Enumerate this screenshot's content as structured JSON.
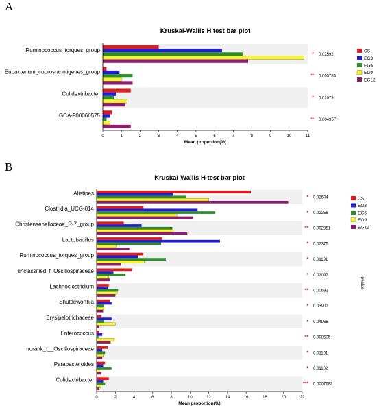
{
  "panels": {
    "a_label": "A",
    "b_label": "B"
  },
  "chart_data": [
    {
      "type": "bar",
      "orientation": "horizontal",
      "title": "Kruskal-Wallis H test bar plot",
      "xlabel": "Mean proportion(%)",
      "ylabel": "",
      "xlim": [
        0,
        11
      ],
      "xticks": [
        0,
        1,
        2,
        3,
        4,
        5,
        6,
        7,
        8,
        9,
        10,
        11
      ],
      "legend_position": "right",
      "categories": [
        "Ruminococcus_torques_group",
        "Eubacterium_coprostanoligenes_group",
        "Colidextribacter",
        "GCA-900066575"
      ],
      "pvalues": [
        "0.02592",
        "0.005785",
        "0.02079",
        "0.004957"
      ],
      "significance": [
        "*",
        "**",
        "*",
        "**"
      ],
      "series": [
        {
          "name": "CS",
          "color": "#e31a1c",
          "values": [
            3.0,
            0.2,
            1.5,
            0.5
          ]
        },
        {
          "name": "EG3",
          "color": "#1f1fd1",
          "values": [
            6.4,
            0.9,
            0.7,
            0.4
          ]
        },
        {
          "name": "EG6",
          "color": "#2e8b2e",
          "values": [
            7.5,
            1.6,
            0.6,
            0.2
          ]
        },
        {
          "name": "EG9",
          "color": "#f5f531",
          "values": [
            10.8,
            1.0,
            1.3,
            0.4
          ]
        },
        {
          "name": "EG12",
          "color": "#8b1f6b",
          "values": [
            7.8,
            1.6,
            1.2,
            1.5
          ]
        }
      ]
    },
    {
      "type": "bar",
      "orientation": "horizontal",
      "title": "Kruskal-Wallis H test bar plot",
      "xlabel": "Mean proportion(%)",
      "ylabel": "pvalue",
      "xlim": [
        0,
        22
      ],
      "xticks": [
        0,
        2,
        4,
        6,
        8,
        10,
        12,
        14,
        16,
        18,
        20,
        22
      ],
      "legend_position": "right",
      "categories": [
        "Alistipes",
        "Clostridia_UCG-014",
        "Christensenellaceae_R-7_group",
        "Lactobacillus",
        "Ruminococcus_torques_group",
        "unclassified_f_Oscillospiraceae",
        "Lachnoclostridium",
        "Shuttleworthia",
        "Erysipelotrichaceae",
        "Enterococcus",
        "norank_f__Oscillospiraceae",
        "Parabacteroides",
        "Colidextribacter"
      ],
      "pvalues": [
        "0.03604",
        "0.02256",
        "0.002851",
        "0.02375",
        "0.01191",
        "0.02097",
        "0.00692",
        "0.03902",
        "0.04968",
        "0.008505",
        "0.01101",
        "0.01102",
        "0.0007682"
      ],
      "significance": [
        "*",
        "*",
        "**",
        "*",
        "*",
        "*",
        "**",
        "*",
        "*",
        "**",
        "*",
        "*",
        "***"
      ],
      "series": [
        {
          "name": "CS",
          "color": "#e31a1c",
          "values": [
            16.5,
            5.0,
            2.9,
            7.0,
            5.0,
            3.8,
            1.3,
            1.4,
            0.5,
            0.3,
            1.2,
            0.9,
            1.3
          ]
        },
        {
          "name": "EG3",
          "color": "#1f1fd1",
          "values": [
            8.2,
            10.8,
            4.8,
            13.2,
            4.4,
            1.8,
            1.2,
            1.6,
            1.6,
            0.6,
            0.6,
            0.7,
            0.7
          ]
        },
        {
          "name": "EG6",
          "color": "#2e8b2e",
          "values": [
            9.6,
            12.7,
            8.1,
            6.9,
            7.4,
            3.1,
            2.3,
            0.8,
            0.8,
            0.2,
            0.9,
            1.6,
            0.9
          ]
        },
        {
          "name": "EG9",
          "color": "#f5f531",
          "values": [
            12.0,
            8.6,
            8.2,
            2.1,
            5.1,
            1.3,
            2.2,
            0.8,
            2.0,
            1.9,
            0.7,
            0.3,
            0.5
          ]
        },
        {
          "name": "EG12",
          "color": "#8b1f6b",
          "values": [
            20.5,
            10.3,
            9.7,
            3.5,
            2.6,
            1.4,
            2.0,
            0.7,
            0.3,
            1.5,
            0.6,
            0.5,
            0.3
          ]
        }
      ]
    }
  ]
}
